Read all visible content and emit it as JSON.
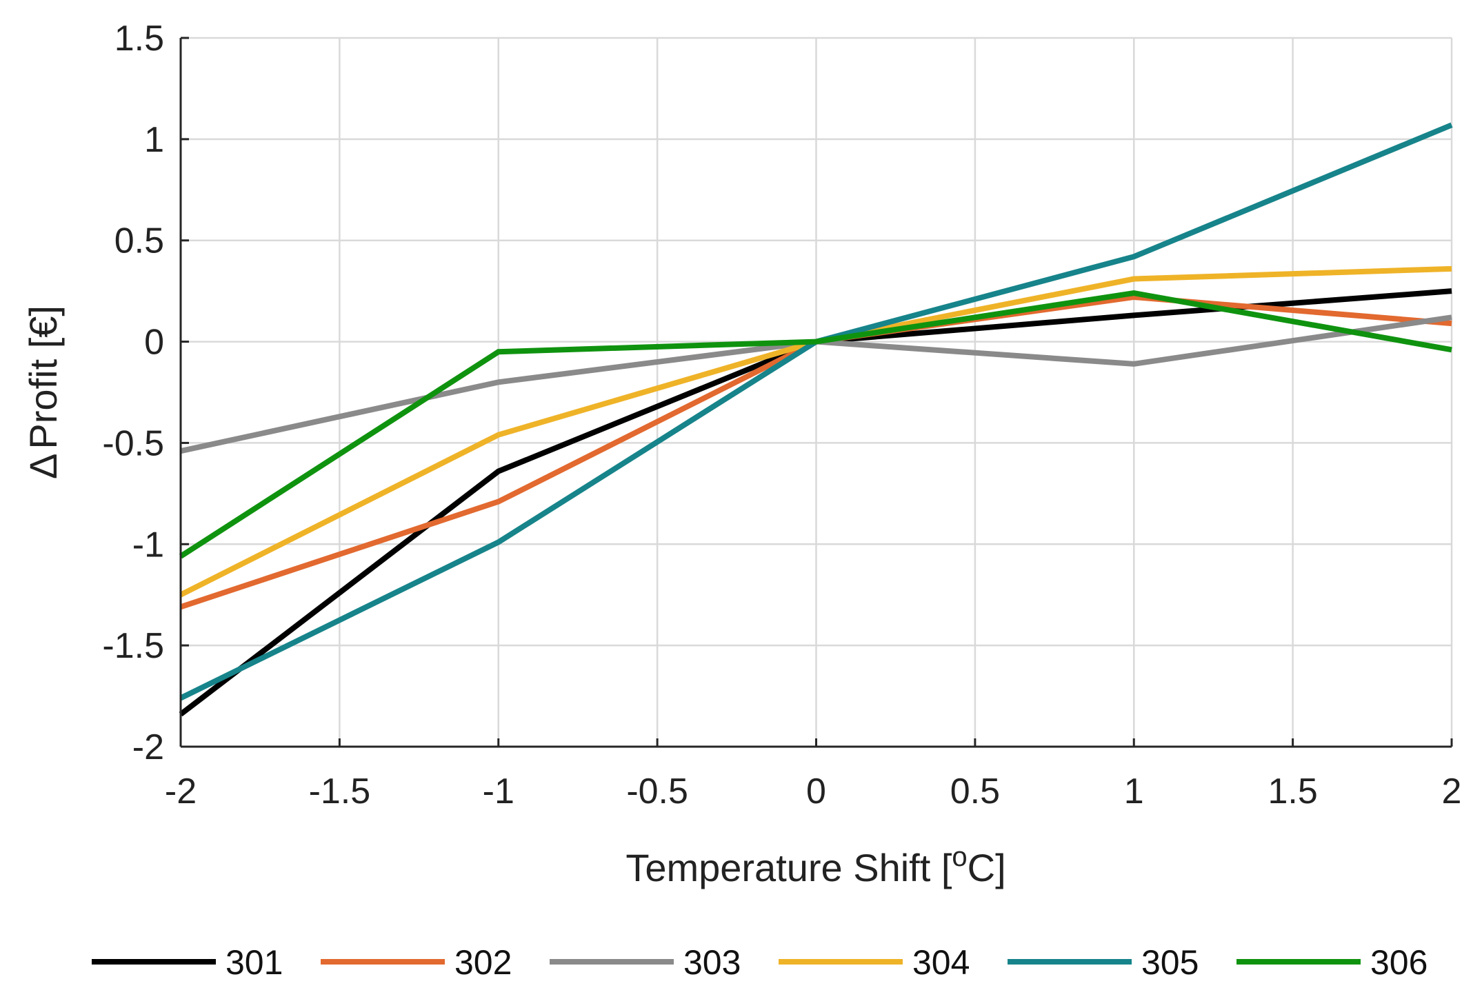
{
  "chart_data": {
    "type": "line",
    "title": "",
    "xlabel": "Temperature Shift [°C]",
    "xlabel_parts": {
      "prefix": "Temperature Shift [",
      "superscript": "o",
      "suffix": "C]"
    },
    "ylabel": "ΔProfit [€]",
    "ylabel_parts": {
      "symbol": "Δ",
      "text": "Profit [€]"
    },
    "x": [
      -2,
      -1,
      0,
      1,
      2
    ],
    "xlim": [
      -2,
      2
    ],
    "ylim": [
      -2,
      1.5
    ],
    "xticks": [
      -2,
      -1.5,
      -1,
      -0.5,
      0,
      0.5,
      1,
      1.5,
      2
    ],
    "yticks": [
      -2,
      -1.5,
      -1,
      -0.5,
      0,
      0.5,
      1,
      1.5
    ],
    "xtick_labels": [
      "-2",
      "-1.5",
      "-1",
      "-0.5",
      "0",
      "0.5",
      "1",
      "1.5",
      "2"
    ],
    "ytick_labels": [
      "-2",
      "-1.5",
      "-1",
      "-0.5",
      "0",
      "0.5",
      "1",
      "1.5"
    ],
    "grid": true,
    "legend_position": "bottom",
    "series": [
      {
        "name": "301",
        "color": "#000000",
        "values": [
          -1.84,
          -0.64,
          0,
          0.13,
          0.25
        ]
      },
      {
        "name": "302",
        "color": "#e2692f",
        "values": [
          -1.31,
          -0.79,
          0,
          0.22,
          0.09
        ]
      },
      {
        "name": "303",
        "color": "#8a8a8a",
        "values": [
          -0.54,
          -0.2,
          0,
          -0.11,
          0.12
        ]
      },
      {
        "name": "304",
        "color": "#efb328",
        "values": [
          -1.25,
          -0.46,
          0,
          0.31,
          0.36
        ]
      },
      {
        "name": "305",
        "color": "#16848a",
        "values": [
          -1.76,
          -0.99,
          0,
          0.42,
          1.07
        ]
      },
      {
        "name": "306",
        "color": "#0f930f",
        "values": [
          -1.06,
          -0.05,
          0,
          0.24,
          -0.04
        ]
      }
    ]
  }
}
